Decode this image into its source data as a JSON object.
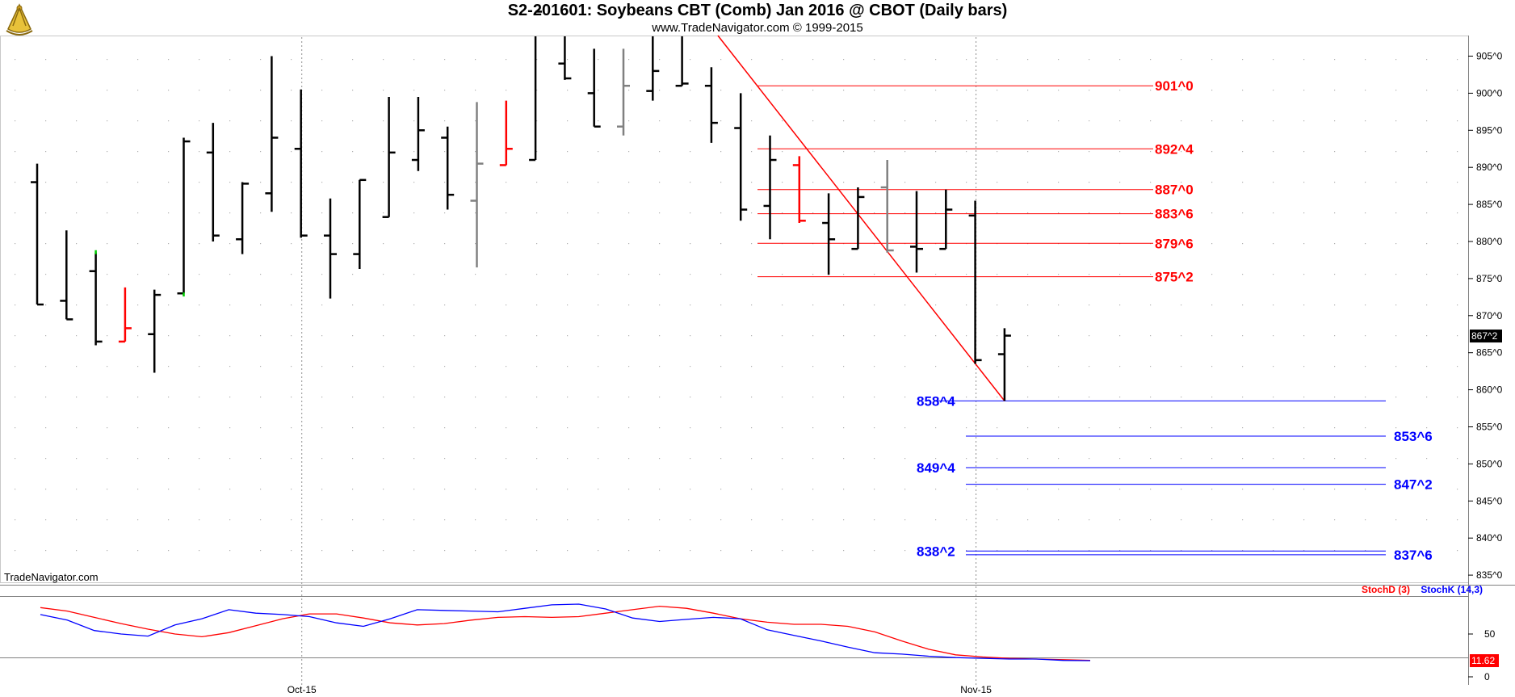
{
  "header": {
    "title": "S2-201601:  Soybeans CBT (Comb) Jan 2016 @ CBOT  (Daily bars)",
    "subtitle": "www.TradeNavigator.com © 1999-2015",
    "watermark": "TradeNavigator.com"
  },
  "colors": {
    "up_down_bar": "#000000",
    "red_bar": "#ff0000",
    "gray_bar": "#808080",
    "green_tick": "#00cc00",
    "resistance": "#ff0000",
    "support": "#0000ff",
    "stoch_d": "#ff0000",
    "stoch_k": "#0000ff",
    "grid_dot": "#b0b0b0"
  },
  "chart_data": {
    "type": "ohlc",
    "title": "S2-201601:  Soybeans CBT (Comb) Jan 2016 @ CBOT  (Daily bars)",
    "price_axis": {
      "ticks": [
        "905^0",
        "900^0",
        "895^0",
        "890^0",
        "885^0",
        "880^0",
        "875^0",
        "870^0",
        "865^0",
        "860^0",
        "855^0",
        "850^0",
        "845^0",
        "840^0",
        "835^0"
      ],
      "tick_values": [
        905,
        900,
        895,
        890,
        885,
        880,
        875,
        870,
        865,
        860,
        855,
        850,
        845,
        840,
        835
      ],
      "range": [
        832.8,
        911.0
      ],
      "last_price_label": "867^2",
      "last_price": 867.25
    },
    "x_axis": {
      "labels": [
        {
          "text": "Oct-15",
          "bar_index": 9
        },
        {
          "text": "Nov-15",
          "bar_index": 32
        }
      ]
    },
    "bars": [
      {
        "o": 888,
        "h": 890.5,
        "l": 871.5,
        "c": 871.5,
        "color": "black"
      },
      {
        "o": 872,
        "h": 881.5,
        "l": 869.5,
        "c": 869.5,
        "color": "black"
      },
      {
        "o": 876,
        "h": 878.5,
        "l": 866,
        "c": 866.5,
        "color": "black"
      },
      {
        "o": 866.5,
        "h": 873.8,
        "l": 866.5,
        "c": 868.3,
        "color": "red"
      },
      {
        "o": 867.5,
        "h": 873.5,
        "l": 862.3,
        "c": 872.8,
        "color": "black"
      },
      {
        "o": 873,
        "h": 894,
        "l": 873,
        "c": 893.5,
        "color": "black"
      },
      {
        "o": 892,
        "h": 896,
        "l": 880,
        "c": 880.8,
        "color": "black"
      },
      {
        "o": 880.3,
        "h": 888,
        "l": 878.3,
        "c": 887.8,
        "color": "black"
      },
      {
        "o": 886.5,
        "h": 905,
        "l": 884,
        "c": 894,
        "color": "black"
      },
      {
        "o": 892.5,
        "h": 900.5,
        "l": 880.5,
        "c": 880.8,
        "color": "black"
      },
      {
        "o": 880.8,
        "h": 885.8,
        "l": 872.3,
        "c": 878.3,
        "color": "black"
      },
      {
        "o": 878.3,
        "h": 888.3,
        "l": 876.3,
        "c": 888.3,
        "color": "black"
      },
      {
        "o": 883.3,
        "h": 899.5,
        "l": 883.3,
        "c": 892,
        "color": "black"
      },
      {
        "o": 891,
        "h": 899.5,
        "l": 889.5,
        "c": 895,
        "color": "black"
      },
      {
        "o": 894,
        "h": 895.5,
        "l": 884.3,
        "c": 886.3,
        "color": "black"
      },
      {
        "o": 885.5,
        "h": 898.8,
        "l": 876.5,
        "c": 890.5,
        "color": "gray"
      },
      {
        "o": 890.3,
        "h": 899,
        "l": 890.3,
        "c": 892.5,
        "color": "red"
      },
      {
        "o": 891,
        "h": 911,
        "l": 891,
        "c": 911,
        "color": "black"
      },
      {
        "o": 904,
        "h": 911,
        "l": 901.8,
        "c": 902,
        "color": "black"
      },
      {
        "o": 900,
        "h": 906,
        "l": 895.5,
        "c": 895.5,
        "color": "black"
      },
      {
        "o": 895.5,
        "h": 906,
        "l": 894.3,
        "c": 901,
        "color": "gray"
      },
      {
        "o": 900.3,
        "h": 911,
        "l": 899,
        "c": 903,
        "color": "black"
      },
      {
        "o": 901,
        "h": 911,
        "l": 901,
        "c": 901.3,
        "color": "black"
      },
      {
        "o": 901,
        "h": 903.5,
        "l": 893.3,
        "c": 896,
        "color": "black"
      },
      {
        "o": 895.3,
        "h": 900,
        "l": 882.8,
        "c": 884.3,
        "color": "black"
      },
      {
        "o": 884.8,
        "h": 894.3,
        "l": 880.3,
        "c": 891,
        "color": "black"
      },
      {
        "o": 890.3,
        "h": 891.5,
        "l": 882.5,
        "c": 882.8,
        "color": "red"
      },
      {
        "o": 882.5,
        "h": 886.5,
        "l": 875.5,
        "c": 880.3,
        "color": "black"
      },
      {
        "o": 879,
        "h": 887.3,
        "l": 879,
        "c": 886,
        "color": "black"
      },
      {
        "o": 887.3,
        "h": 891,
        "l": 878.5,
        "c": 878.8,
        "color": "gray"
      },
      {
        "o": 879.3,
        "h": 886.8,
        "l": 875.8,
        "c": 879,
        "color": "black"
      },
      {
        "o": 879,
        "h": 887,
        "l": 879,
        "c": 884.3,
        "color": "black"
      },
      {
        "o": 883.5,
        "h": 885.5,
        "l": 863.5,
        "c": 864,
        "color": "black"
      },
      {
        "o": 864.8,
        "h": 868.3,
        "l": 858.5,
        "c": 867.3,
        "color": "black"
      }
    ],
    "resistance_levels": [
      {
        "label": "901^0",
        "value": 901
      },
      {
        "label": "892^4",
        "value": 892.5
      },
      {
        "label": "887^0",
        "value": 887
      },
      {
        "label": "883^6",
        "value": 883.75
      },
      {
        "label": "879^6",
        "value": 879.75
      },
      {
        "label": "875^2",
        "value": 875.25
      }
    ],
    "support_levels": [
      {
        "label": "858^4",
        "value": 858.5
      },
      {
        "label": "853^6",
        "value": 853.75
      },
      {
        "label": "849^4",
        "value": 849.5
      },
      {
        "label": "847^2",
        "value": 847.25
      },
      {
        "label": "838^2",
        "value": 838.25
      },
      {
        "label": "837^6",
        "value": 837.75
      }
    ],
    "trendline": {
      "from_bar": 23,
      "from_value": 911,
      "to_bar": 33,
      "to_value": 858.5
    },
    "stochastic": {
      "legend": [
        "StochD (3)",
        "StochK (14,3)"
      ],
      "ticks": [
        "50",
        "0"
      ],
      "tick_values": [
        50,
        0
      ],
      "range": [
        0,
        100
      ],
      "last_label": "11.62",
      "stochD": [
        88,
        83,
        74,
        65,
        57,
        50,
        46,
        52,
        62,
        72,
        79,
        79,
        73,
        66,
        63,
        65,
        70,
        74,
        75,
        74,
        75,
        80,
        85,
        90,
        87,
        80,
        72,
        67,
        64,
        64,
        61,
        53,
        40,
        28,
        20,
        17,
        15,
        14,
        13,
        12
      ],
      "stochK": [
        78,
        70,
        55,
        50,
        47,
        63,
        72,
        85,
        80,
        78,
        75,
        66,
        61,
        72,
        85,
        84,
        83,
        82,
        87,
        92,
        93,
        86,
        73,
        68,
        71,
        74,
        72,
        56,
        48,
        40,
        31,
        23,
        21,
        18,
        16,
        15,
        14,
        14,
        12,
        11.6
      ]
    }
  }
}
